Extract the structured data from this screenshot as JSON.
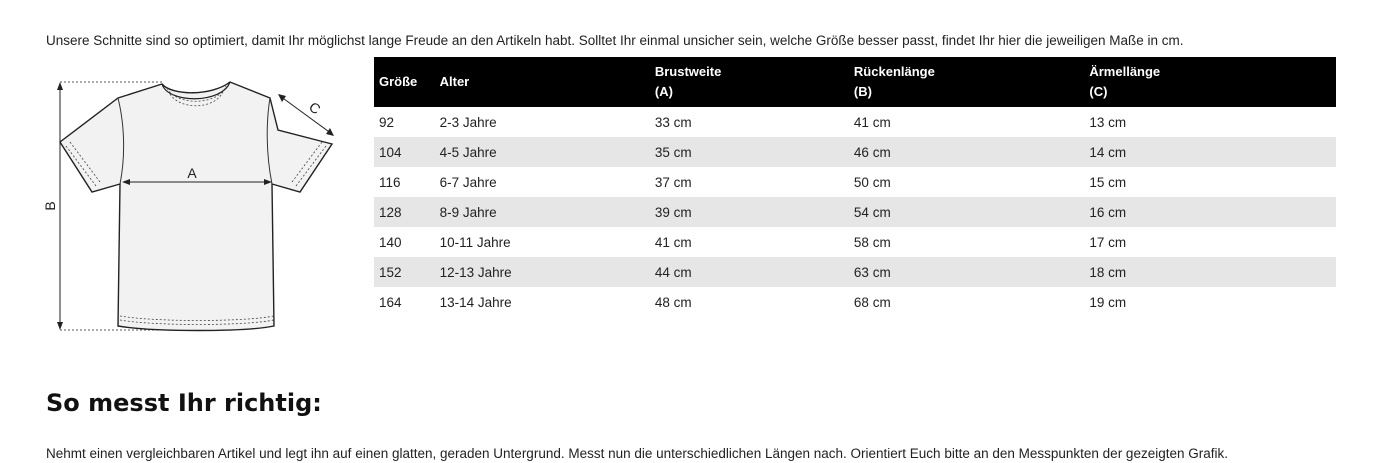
{
  "intro_text": "Unsere Schnitte sind so optimiert, damit Ihr möglichst lange Freude an den Artikeln habt. Solltet Ihr einmal unsicher sein, welche Größe besser passt, findet Ihr hier die jeweiligen Maße in cm.",
  "diagram": {
    "label_a": "A",
    "label_b": "B",
    "label_c": "C"
  },
  "table": {
    "headers": {
      "size": "Größe",
      "age": "Alter",
      "chest_line1": "Brustweite",
      "chest_line2": "(A)",
      "back_line1": "Rückenlänge",
      "back_line2": "(B)",
      "sleeve_line1": "Ärmellänge",
      "sleeve_line2": "(C)"
    },
    "rows": [
      {
        "size": "92",
        "age": "2-3 Jahre",
        "chest": "33 cm",
        "back": "41 cm",
        "sleeve": "13 cm"
      },
      {
        "size": "104",
        "age": "4-5 Jahre",
        "chest": "35 cm",
        "back": "46 cm",
        "sleeve": "14 cm"
      },
      {
        "size": "116",
        "age": "6-7 Jahre",
        "chest": "37 cm",
        "back": "50 cm",
        "sleeve": "15 cm"
      },
      {
        "size": "128",
        "age": "8-9 Jahre",
        "chest": "39 cm",
        "back": "54 cm",
        "sleeve": "16 cm"
      },
      {
        "size": "140",
        "age": "10-11 Jahre",
        "chest": "41 cm",
        "back": "58 cm",
        "sleeve": "17 cm"
      },
      {
        "size": "152",
        "age": "12-13 Jahre",
        "chest": "44 cm",
        "back": "63 cm",
        "sleeve": "18 cm"
      },
      {
        "size": "164",
        "age": "13-14 Jahre",
        "chest": "48 cm",
        "back": "68 cm",
        "sleeve": "19 cm"
      }
    ]
  },
  "section_title": "So messt Ihr richtig:",
  "outro_text": "Nehmt einen vergleichbaren Artikel und legt ihn auf einen glatten, geraden Untergrund. Messt nun die unterschiedlichen Längen nach. Orientiert Euch bitte an den Messpunkten der gezeigten Grafik."
}
